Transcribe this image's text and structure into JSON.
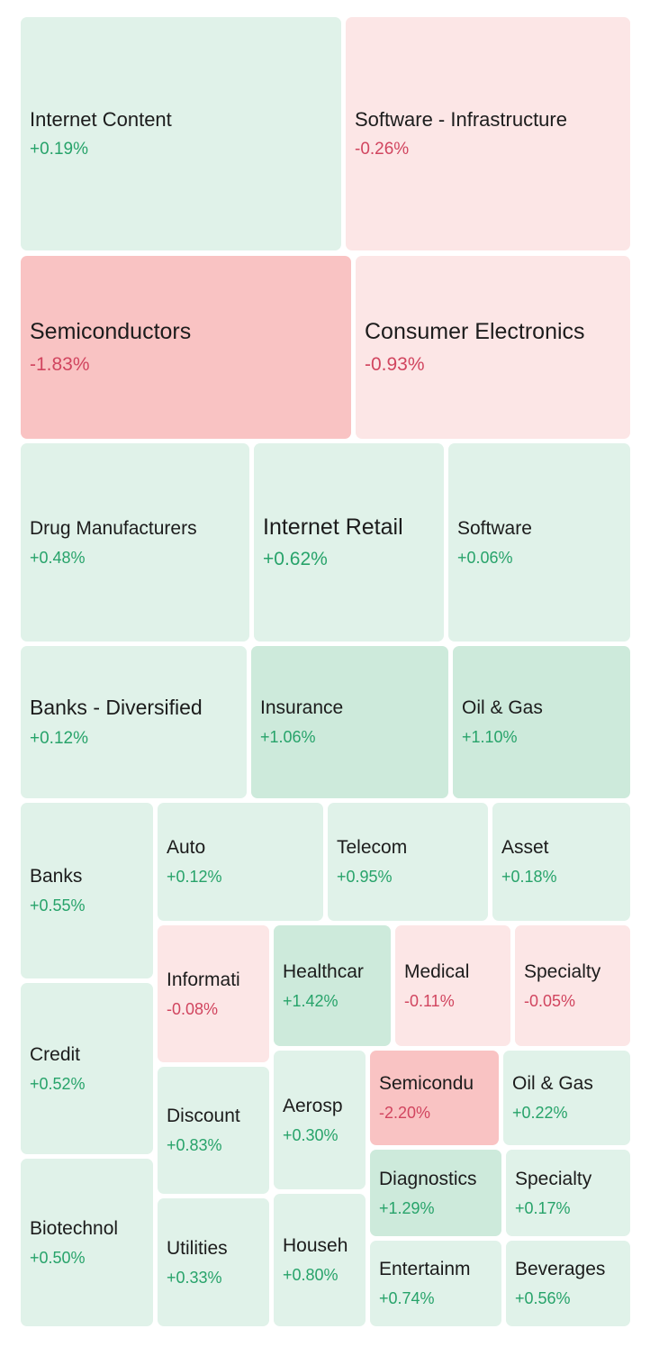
{
  "chart_data": {
    "type": "treemap",
    "colors": {
      "pos_light": "#e0f2e9",
      "pos_mid": "#cdeadb",
      "neg_light": "#fce6e6",
      "neg_mid": "#fbd8d8",
      "neg_strong": "#f9c3c3",
      "pos_text": "#27a36a",
      "neg_text": "#d1455f"
    },
    "tiles": [
      {
        "label": "Internet Content",
        "change": "+0.19%",
        "value": 0.19
      },
      {
        "label": "Software - Infrastructure",
        "change": "-0.26%",
        "value": -0.26
      },
      {
        "label": "Semiconductors",
        "change": "-1.83%",
        "value": -1.83
      },
      {
        "label": "Consumer Electronics",
        "change": "-0.93%",
        "value": -0.93
      },
      {
        "label": "Drug Manufacturers",
        "change": "+0.48%",
        "value": 0.48
      },
      {
        "label": "Internet Retail",
        "change": "+0.62%",
        "value": 0.62
      },
      {
        "label": "Software",
        "change": "+0.06%",
        "value": 0.06
      },
      {
        "label": "Banks - Diversified",
        "change": "+0.12%",
        "value": 0.12
      },
      {
        "label": "Insurance",
        "change": "+1.06%",
        "value": 1.06
      },
      {
        "label": "Oil & Gas",
        "change": "+1.10%",
        "value": 1.1
      },
      {
        "label": "Banks",
        "change": "+0.55%",
        "value": 0.55
      },
      {
        "label": "Auto",
        "change": "+0.12%",
        "value": 0.12
      },
      {
        "label": "Telecom",
        "change": "+0.95%",
        "value": 0.95
      },
      {
        "label": "Asset",
        "change": "+0.18%",
        "value": 0.18
      },
      {
        "label": "Credit",
        "change": "+0.52%",
        "value": 0.52
      },
      {
        "label": "Informati",
        "change": "-0.08%",
        "value": -0.08
      },
      {
        "label": "Healthcar",
        "change": "+1.42%",
        "value": 1.42
      },
      {
        "label": "Medical",
        "change": "-0.11%",
        "value": -0.11
      },
      {
        "label": "Specialty",
        "change": "-0.05%",
        "value": -0.05
      },
      {
        "label": "Discount",
        "change": "+0.83%",
        "value": 0.83
      },
      {
        "label": "Aerosp",
        "change": "+0.30%",
        "value": 0.3
      },
      {
        "label": "Semicondu",
        "change": "-2.20%",
        "value": -2.2
      },
      {
        "label": "Oil & Gas",
        "change": "+0.22%",
        "value": 0.22
      },
      {
        "label": "Biotechnol",
        "change": "+0.50%",
        "value": 0.5
      },
      {
        "label": "Diagnostics",
        "change": "+1.29%",
        "value": 1.29
      },
      {
        "label": "Specialty",
        "change": "+0.17%",
        "value": 0.17
      },
      {
        "label": "Utilities",
        "change": "+0.33%",
        "value": 0.33
      },
      {
        "label": "Househ",
        "change": "+0.80%",
        "value": 0.8
      },
      {
        "label": "Entertainm",
        "change": "+0.74%",
        "value": 0.74
      },
      {
        "label": "Beverages",
        "change": "+0.56%",
        "value": 0.56
      }
    ]
  }
}
